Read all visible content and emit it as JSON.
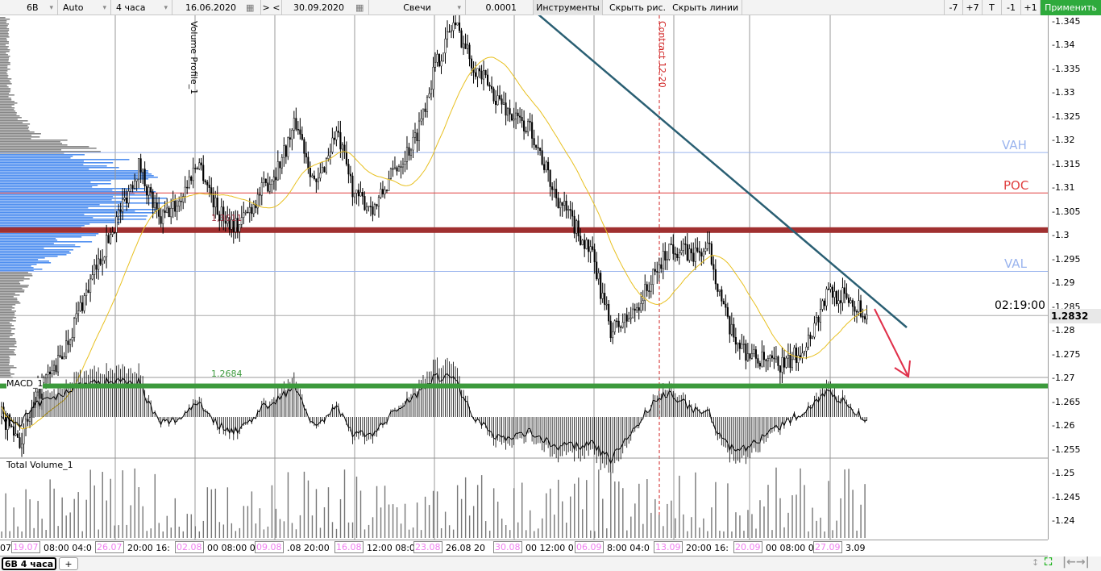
{
  "toolbar": {
    "symbol": "6B",
    "scale": "Auto",
    "timeframe": "4 часа",
    "date_from": "16.06.2020",
    "nav": "> <",
    "date_to": "30.09.2020",
    "chart_type": "Свечи",
    "step": "0.0001",
    "tools": "Инструменты",
    "hide_drawings": "Скрыть рис.",
    "hide_lines": "Скрыть линии",
    "minus7": "-7",
    "plus7": "+7",
    "t": "T",
    "minus1": "-1",
    "plus1": "+1",
    "apply": "Применить"
  },
  "annotations": {
    "volume_profile": "Volume Profile_1",
    "contract": "Contract 12-20",
    "vah": "VAH",
    "poc": "POC",
    "val": "VAL",
    "level_high": "1,3011",
    "level_low": "1.2684",
    "countdown": "02:19:00",
    "current_price": "1.2832",
    "macd": "MACD_1",
    "volume": "Total Volume_1"
  },
  "colors": {
    "apply": "#2eaa3c",
    "resistance": "#a03030",
    "support": "#3c9a3c",
    "trend": "#2a5f73",
    "arrow": "#e0304a",
    "profile_value_area": "#4f8ff0",
    "profile": "#888888",
    "ma": "#e8c020"
  },
  "chart_data": {
    "type": "candlestick",
    "y_ticks": [
      "1.345",
      "1.34",
      "1.335",
      "1.33",
      "1.325",
      "1.32",
      "1.315",
      "1.31",
      "1.305",
      "1.3",
      "1.295",
      "1.29",
      "1.285",
      "1.28",
      "1.275",
      "1.27",
      "1.265",
      "1.26",
      "1.255",
      "1.25",
      "1.245",
      "1.24"
    ],
    "ylim": [
      1.24,
      1.345
    ],
    "levels": {
      "vah": 1.3175,
      "poc": 1.309,
      "resistance": 1.3011,
      "val": 1.2925,
      "support": 1.2684,
      "last": 1.2832
    },
    "approx_close_path": [
      1.262,
      1.257,
      1.268,
      1.274,
      1.285,
      1.295,
      1.305,
      1.315,
      1.303,
      1.307,
      1.316,
      1.305,
      1.302,
      1.308,
      1.314,
      1.324,
      1.31,
      1.322,
      1.308,
      1.306,
      1.314,
      1.32,
      1.335,
      1.345,
      1.336,
      1.33,
      1.325,
      1.322,
      1.31,
      1.303,
      1.296,
      1.28,
      1.283,
      1.29,
      1.298,
      1.296,
      1.297,
      1.28,
      1.275,
      1.273,
      1.273,
      1.278,
      1.288,
      1.287,
      1.2832
    ],
    "time_axis": [
      {
        "pre": "07",
        "date": "19.07",
        "post": "08:00  04:0"
      },
      {
        "date": "26.07",
        "post": "20:00  16:"
      },
      {
        "date": "02.08",
        "post": "00  08:00  0"
      },
      {
        "date": "09.08",
        "post": ".08  20:00"
      },
      {
        "date": "16.08",
        "post": "12:00  08:0"
      },
      {
        "date": "23.08",
        "post": "26.08  20"
      },
      {
        "date": "30.08",
        "post": "00  12:00  0"
      },
      {
        "date": "06.09",
        "post": "8:00  04:0"
      },
      {
        "date": "13.09",
        "post": "20:00  16:"
      },
      {
        "date": "20.09",
        "post": "00  08:00  0"
      },
      {
        "date": "27.09",
        "post": "3.09"
      }
    ]
  },
  "tabs": {
    "active": "6B 4 часа",
    "add": "+"
  }
}
